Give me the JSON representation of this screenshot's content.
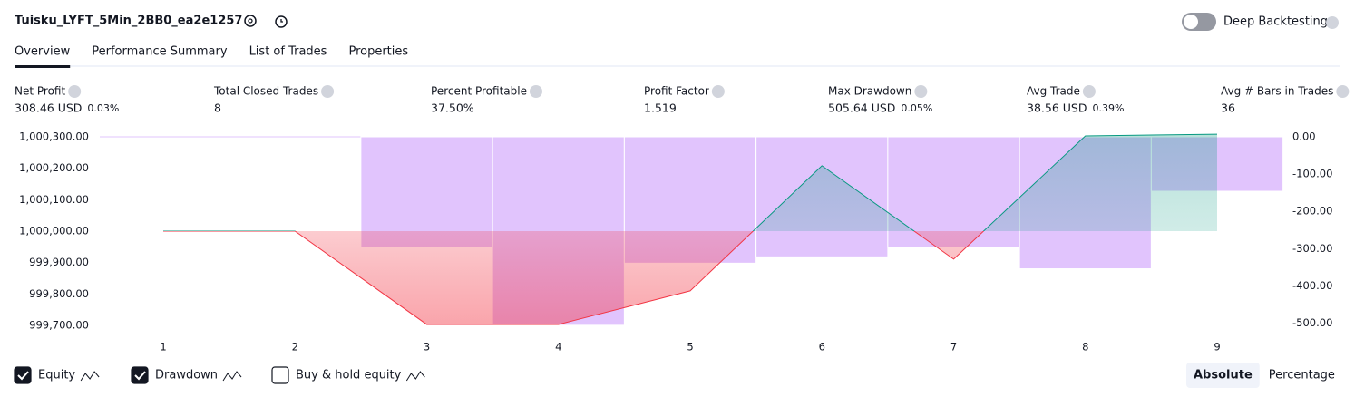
{
  "header": {
    "title": "Tuisku_LYFT_5Min_2BB0_ea2e1257",
    "toggle_label": "Deep Backtesting"
  },
  "tabs": [
    "Overview",
    "Performance Summary",
    "List of Trades",
    "Properties"
  ],
  "metrics": [
    {
      "label": "Net Profit",
      "value": "308.46 USD",
      "percent": "0.03%",
      "tone": "positive"
    },
    {
      "label": "Total Closed Trades",
      "value": "8",
      "tone": "neutral"
    },
    {
      "label": "Percent Profitable",
      "value": "37.50%",
      "tone": "positive"
    },
    {
      "label": "Profit Factor",
      "value": "1.519",
      "tone": "positive"
    },
    {
      "label": "Max Drawdown",
      "value": "505.64 USD",
      "percent": "0.05%",
      "tone": "negative"
    },
    {
      "label": "Avg Trade",
      "value": "38.56 USD",
      "percent": "0.39%",
      "tone": "positive"
    },
    {
      "label": "Avg # Bars in Trades",
      "value": "36",
      "tone": "neutral"
    }
  ],
  "chart_data": {
    "type": "line",
    "categories": [
      "1",
      "2",
      "3",
      "4",
      "5",
      "6",
      "7",
      "8",
      "9"
    ],
    "series": [
      {
        "name": "Equity",
        "color": "#089981",
        "values": [
          1000000,
          1000000,
          999703,
          999703,
          999810,
          1000208,
          999911,
          1000303,
          1000308.46
        ]
      },
      {
        "name": "Drawdown",
        "type": "bar",
        "axis": "y2",
        "color": "#e1c4fd",
        "values": [
          0,
          0,
          -297,
          -505.64,
          -339,
          -322,
          -297,
          -354,
          -146
        ]
      }
    ],
    "ylim": [
      999700,
      1000300
    ],
    "yticks": [
      {
        "value": 1000300,
        "label": "1,000,300.00"
      },
      {
        "value": 1000200,
        "label": "1,000,200.00"
      },
      {
        "value": 1000100,
        "label": "1,000,100.00"
      },
      {
        "value": 1000000,
        "label": "1,000,000.00"
      },
      {
        "value": 999900,
        "label": "999,900.00"
      },
      {
        "value": 999800,
        "label": "999,800.00"
      },
      {
        "value": 999700,
        "label": "999,700.00"
      }
    ],
    "y2lim": [
      -506,
      0
    ],
    "y2ticks": [
      {
        "value": 0,
        "label": "0.00"
      },
      {
        "value": -100,
        "label": "-100.00"
      },
      {
        "value": -200,
        "label": "-200.00"
      },
      {
        "value": -300,
        "label": "-300.00"
      },
      {
        "value": -400,
        "label": "-400.00"
      },
      {
        "value": -500,
        "label": "-500.00"
      }
    ]
  },
  "footer": {
    "checkboxes": [
      {
        "label": "Equity",
        "checked": true
      },
      {
        "label": "Drawdown",
        "checked": true
      },
      {
        "label": "Buy & hold equity",
        "checked": false
      }
    ],
    "buttons": [
      {
        "label": "Absolute",
        "active": true
      },
      {
        "label": "Percentage",
        "active": false
      }
    ]
  }
}
